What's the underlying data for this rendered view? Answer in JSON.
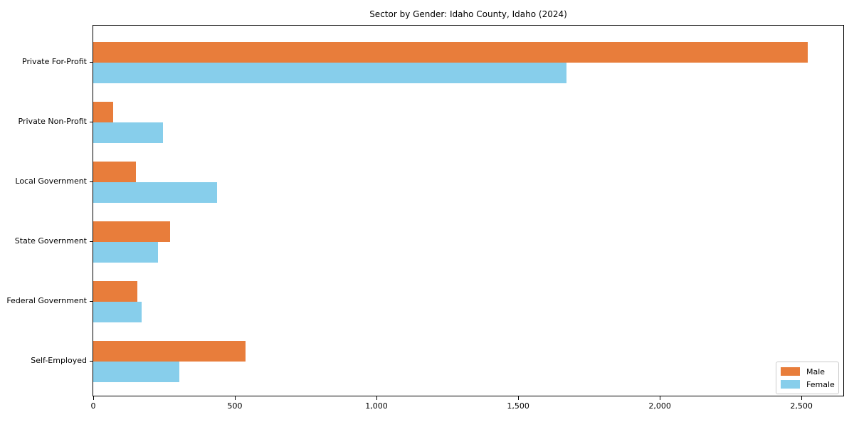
{
  "title": "Sector by Gender: Idaho County, Idaho (2024)",
  "colors": {
    "male": "#E87D3B",
    "female": "#87CEEB",
    "axis": "#000000",
    "legend_border": "#CCCCCC",
    "background": "#FFFFFF"
  },
  "legend": {
    "position": "lower right",
    "items": [
      {
        "label": "Male",
        "color_key": "male"
      },
      {
        "label": "Female",
        "color_key": "female"
      }
    ]
  },
  "chart_data": {
    "type": "bar",
    "orientation": "horizontal",
    "title": "Sector by Gender: Idaho County, Idaho (2024)",
    "categories": [
      "Private For-Profit",
      "Private Non-Profit",
      "Local Government",
      "State Government",
      "Federal Government",
      "Self-Employed"
    ],
    "series": [
      {
        "name": "Male",
        "color": "#E87D3B",
        "values": [
          2522,
          69,
          150,
          270,
          155,
          538
        ]
      },
      {
        "name": "Female",
        "color": "#87CEEB",
        "values": [
          1671,
          245,
          437,
          228,
          171,
          304
        ]
      }
    ],
    "xlabel": "",
    "ylabel": "",
    "xlim": [
      0,
      2648
    ],
    "xticks": [
      {
        "value": 0,
        "label": "0"
      },
      {
        "value": 500,
        "label": "500"
      },
      {
        "value": 1000,
        "label": "1,000"
      },
      {
        "value": 1500,
        "label": "1,500"
      },
      {
        "value": 2000,
        "label": "2,000"
      },
      {
        "value": 2500,
        "label": "2,500"
      }
    ],
    "grid": false,
    "legend_position": "lower right"
  }
}
